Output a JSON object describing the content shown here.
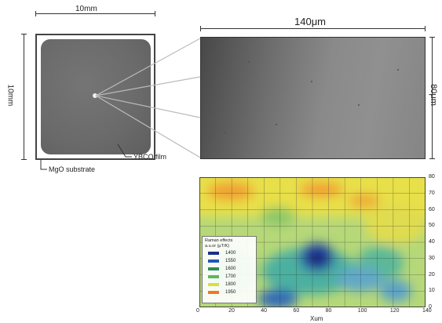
{
  "labels": {
    "substrate_width": "10mm",
    "substrate_height": "10mm",
    "micrograph_width": "140μm",
    "micrograph_height": "80μm",
    "substrate": "MgO substrate",
    "film": "YBCO film",
    "x_axis": "Xum"
  },
  "legend": {
    "title": "Raman effects",
    "subtitle": "a.u.or (μT/K)",
    "entries": [
      {
        "label": "1400",
        "color": "#1a2e8a"
      },
      {
        "label": "1550",
        "color": "#2455b5"
      },
      {
        "label": "1600",
        "color": "#2e8b57"
      },
      {
        "label": "1700",
        "color": "#5cb85c"
      },
      {
        "label": "1800",
        "color": "#d8e040"
      },
      {
        "label": "1950",
        "color": "#f07828"
      }
    ]
  },
  "heatmap": {
    "x_ticks": [
      "0",
      "20",
      "40",
      "60",
      "80",
      "100",
      "120",
      "140"
    ],
    "y_ticks": [
      "0",
      "10",
      "20",
      "30",
      "40",
      "50",
      "60",
      "70",
      "80"
    ],
    "xlim": [
      0,
      140
    ],
    "ylim": [
      0,
      80
    ]
  }
}
